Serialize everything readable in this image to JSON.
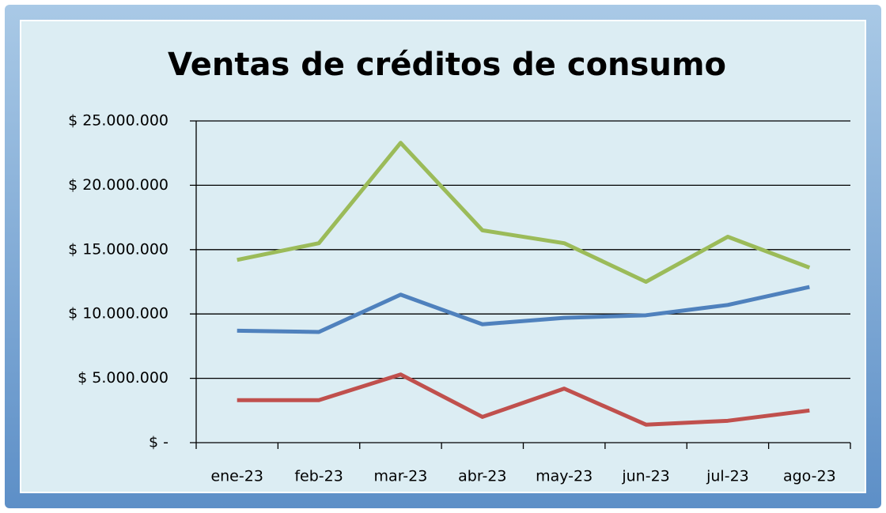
{
  "chart_data": {
    "type": "line",
    "title": "Ventas de créditos de consumo",
    "categories": [
      "ene-23",
      "feb-23",
      "mar-23",
      "abr-23",
      "may-23",
      "jun-23",
      "jul-23",
      "ago-23"
    ],
    "series": [
      {
        "color": "#9bbb59",
        "values": [
          14200000,
          15500000,
          23300000,
          16500000,
          15500000,
          12500000,
          16000000,
          13600000
        ]
      },
      {
        "color": "#4f81bd",
        "values": [
          8700000,
          8600000,
          11500000,
          9200000,
          9700000,
          9900000,
          10700000,
          12100000
        ]
      },
      {
        "color": "#c0504d",
        "values": [
          3300000,
          3300000,
          5300000,
          2000000,
          4200000,
          1400000,
          1700000,
          2500000
        ]
      }
    ],
    "ylim": [
      0,
      25000000
    ],
    "yticks": [
      {
        "value": 0,
        "label": "$ -"
      },
      {
        "value": 5000000,
        "label": "$ 5.000.000"
      },
      {
        "value": 10000000,
        "label": "$ 10.000.000"
      },
      {
        "value": 15000000,
        "label": "$ 15.000.000"
      },
      {
        "value": 20000000,
        "label": "$ 20.000.000"
      },
      {
        "value": 25000000,
        "label": "$ 25.000.000"
      }
    ],
    "grid": true
  }
}
